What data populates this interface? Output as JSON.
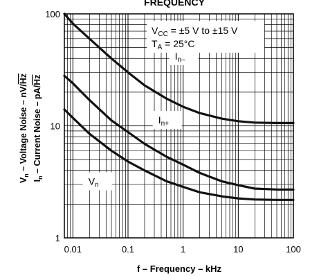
{
  "chart_data": {
    "type": "line",
    "title": "FREQUENCY",
    "xlabel": "f – Frequency – kHz",
    "ylabel_parts": {
      "line1_prefix": "V",
      "line1_sub": "n",
      "line1_text": " – Voltage Noise – nV/",
      "line1_root": "Hz",
      "line2_prefix": "I",
      "line2_sub": "n",
      "line2_text": " – Current Noise – pA/",
      "line2_root": "Hz"
    },
    "x_scale": "log",
    "y_scale": "log",
    "xlim": [
      0.007,
      100
    ],
    "ylim": [
      1,
      100
    ],
    "x_ticks": [
      {
        "value": 0.01,
        "label": "0.01"
      },
      {
        "value": 0.1,
        "label": "0.1"
      },
      {
        "value": 1,
        "label": "1"
      },
      {
        "value": 10,
        "label": "10"
      },
      {
        "value": 100,
        "label": "100"
      }
    ],
    "y_ticks": [
      {
        "value": 1,
        "label": "1"
      },
      {
        "value": 10,
        "label": "10"
      },
      {
        "value": 100,
        "label": "100"
      }
    ],
    "grid": true,
    "annotation": {
      "vcc_prefix": "V",
      "vcc_sub": "CC",
      "vcc_text": " = ±5 V to ±15 V",
      "ta_prefix": "T",
      "ta_sub": "A",
      "ta_text": " = 25°C"
    },
    "series": [
      {
        "name": "In–",
        "label_main": "I",
        "label_sub": "n–",
        "label_x": 1.0,
        "label_y": 42,
        "points": [
          [
            0.007,
            100
          ],
          [
            0.01,
            82
          ],
          [
            0.02,
            60
          ],
          [
            0.05,
            40
          ],
          [
            0.1,
            30
          ],
          [
            0.2,
            23
          ],
          [
            0.5,
            17.5
          ],
          [
            1,
            14.8
          ],
          [
            2,
            13
          ],
          [
            5,
            11.6
          ],
          [
            10,
            11
          ],
          [
            20,
            10.7
          ],
          [
            50,
            10.6
          ],
          [
            100,
            10.6
          ]
        ]
      },
      {
        "name": "In+",
        "label_main": "I",
        "label_sub": "n+",
        "label_x": 0.5,
        "label_y": 11.3,
        "points": [
          [
            0.007,
            28
          ],
          [
            0.01,
            24
          ],
          [
            0.02,
            17
          ],
          [
            0.05,
            11.2
          ],
          [
            0.1,
            8.8
          ],
          [
            0.2,
            6.9
          ],
          [
            0.5,
            5.3
          ],
          [
            1,
            4.5
          ],
          [
            2,
            3.8
          ],
          [
            5,
            3.2
          ],
          [
            10,
            2.95
          ],
          [
            20,
            2.75
          ],
          [
            50,
            2.7
          ],
          [
            100,
            2.7
          ]
        ]
      },
      {
        "name": "Vn",
        "label_main": "V",
        "label_sub": "n",
        "label_x": 0.027,
        "label_y": 3.2,
        "points": [
          [
            0.007,
            14
          ],
          [
            0.01,
            11.8
          ],
          [
            0.02,
            8.5
          ],
          [
            0.05,
            6
          ],
          [
            0.1,
            4.8
          ],
          [
            0.2,
            4
          ],
          [
            0.5,
            3.2
          ],
          [
            1,
            2.85
          ],
          [
            2,
            2.55
          ],
          [
            5,
            2.35
          ],
          [
            10,
            2.25
          ],
          [
            20,
            2.2
          ],
          [
            50,
            2.18
          ],
          [
            100,
            2.18
          ]
        ]
      }
    ]
  }
}
